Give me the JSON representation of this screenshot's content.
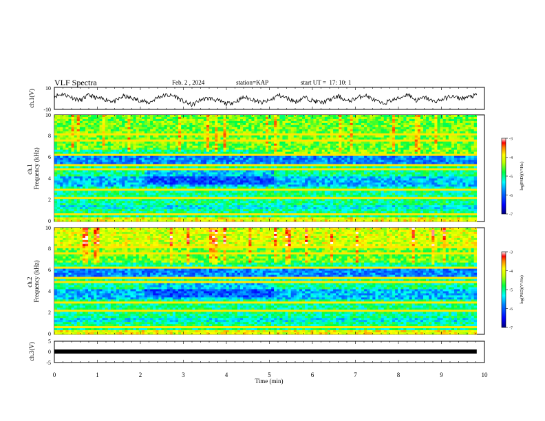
{
  "header": {
    "title": "VLF Spectra",
    "date": "Feb. 2 , 2024",
    "station": "station=KAP",
    "start": "start UT =  17: 10: 1"
  },
  "chart_data": [
    {
      "type": "line",
      "panel": "ch1-waveform",
      "ylabel": "ch.1(V)",
      "ylim": [
        -10,
        10
      ],
      "yticks": [
        "10",
        "-10"
      ],
      "xlim": [
        0,
        10
      ],
      "xrange_data": [
        0,
        9.82
      ],
      "series": [
        {
          "values": [
            2,
            4,
            1,
            -2,
            3,
            0,
            -1,
            -3,
            2,
            0,
            -2,
            -4,
            1,
            3,
            2,
            -3,
            -6,
            -1,
            0,
            -2,
            -5,
            -3,
            1,
            -1,
            -4,
            -2,
            3,
            0,
            -3,
            1,
            -2,
            -4,
            -1,
            2,
            -3,
            0,
            3,
            -1,
            -5,
            -2,
            0,
            4,
            -2,
            1,
            -3,
            -1,
            2,
            0,
            1,
            3
          ]
        }
      ]
    },
    {
      "type": "heatmap",
      "panel": "ch1-spectrogram",
      "ylabel": "ch.1\nFrequency (kHz)",
      "ylim": [
        0,
        10
      ],
      "yticks": [
        "0",
        "2",
        "4",
        "6",
        "8",
        "10"
      ],
      "xlim": [
        0,
        10
      ],
      "xrange_data": [
        0,
        9.82
      ],
      "colorbar": {
        "label": "log(PSD)(V²/Hz)",
        "range": [
          -7,
          -3
        ],
        "ticks": [
          "-3",
          "-4",
          "-5",
          "-6",
          "-7"
        ]
      }
    },
    {
      "type": "heatmap",
      "panel": "ch2-spectrogram",
      "ylabel": "ch.2\nFrequency (kHz)",
      "ylim": [
        0,
        10
      ],
      "yticks": [
        "0",
        "2",
        "4",
        "6",
        "8",
        "10"
      ],
      "xlim": [
        0,
        10
      ],
      "xrange_data": [
        0,
        9.82
      ],
      "colorbar": {
        "label": "log(PSD)(V²/Hz)",
        "range": [
          -7,
          -3
        ],
        "ticks": [
          "-3",
          "-4",
          "-5",
          "-6",
          "-7"
        ]
      }
    },
    {
      "type": "line",
      "panel": "ch3-waveform",
      "ylabel": "ch.3(V)",
      "ylim": [
        -5,
        5
      ],
      "yticks": [
        "5",
        "0",
        "-5"
      ],
      "xlim": [
        0,
        10
      ],
      "xlabel": "Time (min)",
      "xticks": [
        "0",
        "1",
        "2",
        "3",
        "4",
        "5",
        "6",
        "7",
        "8",
        "9",
        "10"
      ],
      "series": [
        {
          "values": [
            -0.1,
            0.1,
            -0.1,
            0.1
          ]
        }
      ]
    }
  ],
  "colors": {
    "colormap": [
      "#000080",
      "#0000ff",
      "#0080ff",
      "#00ffff",
      "#00ff80",
      "#00ff00",
      "#ffff00",
      "#ff8000",
      "#ff0000",
      "#ffffff"
    ]
  }
}
